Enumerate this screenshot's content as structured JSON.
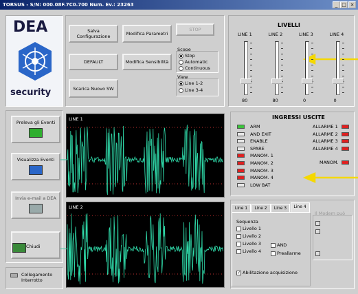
{
  "window": {
    "title": "TORSUS - S/N: 000.08F.7C0.700  Num. Ev.: 23263"
  },
  "logo": {
    "brand": "DEA",
    "tagline": "security"
  },
  "buttons": {
    "save": "Salva Configurazione",
    "params": "Modifica Parametri",
    "stop": "STOP",
    "default": "DEFAULT",
    "sensitivity": "Modifica Sensibilità",
    "download": "Scarica Nuovo SW"
  },
  "scope": {
    "label": "Scope",
    "options": [
      "Stop",
      "Automatic",
      "Continuous"
    ]
  },
  "view": {
    "label": "View",
    "options": [
      "Line 1-2",
      "Line 3-4"
    ]
  },
  "levels": {
    "title": "LIVELLI",
    "lines": [
      "LINE 1",
      "LINE 2",
      "LINE 3",
      "LINE 4"
    ],
    "values": [
      "80",
      "80",
      "0",
      "0"
    ]
  },
  "side_buttons": [
    "Preleva gli Eventi",
    "Visualizza Eventi",
    "Invia e-mail a DEA",
    "Chiudi"
  ],
  "status": "Collegamento Interrotto",
  "scope_panels": [
    "LINE 1",
    "LINE 2"
  ],
  "io": {
    "title": "INGRESSI USCITE",
    "inputs": [
      {
        "label": "ARM",
        "color": "#3cc43c"
      },
      {
        "label": "AND EXIT",
        "color": "#e8e8e8"
      },
      {
        "label": "ENABLE",
        "color": "#e8e8e8"
      },
      {
        "label": "SPARE",
        "color": "#e8e8e8"
      },
      {
        "label": "MANOM. 1",
        "color": "#e02020"
      },
      {
        "label": "MANOM. 2",
        "color": "#e02020"
      },
      {
        "label": "MANOM. 3",
        "color": "#e02020"
      },
      {
        "label": "MANOM. 4",
        "color": "#e02020"
      },
      {
        "label": "LOW BAT",
        "color": "#e8e8e8"
      }
    ],
    "outputs": [
      {
        "label": "ALLARME 1",
        "color": "#e02020"
      },
      {
        "label": "ALLARME 2",
        "color": "#e02020"
      },
      {
        "label": "ALLARME 3",
        "color": "#e02020"
      },
      {
        "label": "ALLARME 4",
        "color": "#e02020"
      },
      {
        "label": "MANOM.",
        "color": "#e02020"
      }
    ]
  },
  "tabs": {
    "names": [
      "Line 1",
      "Line 2",
      "Line 3",
      "Line 4"
    ],
    "sequence": "Sequenza",
    "levels": [
      "Livello 1",
      "Livello 2",
      "Livello 3",
      "Livello 4"
    ],
    "and": "AND",
    "prealarm": "Preallarme",
    "acquire": "Abilitazione acquisizione",
    "modem": "Il Modem può"
  }
}
